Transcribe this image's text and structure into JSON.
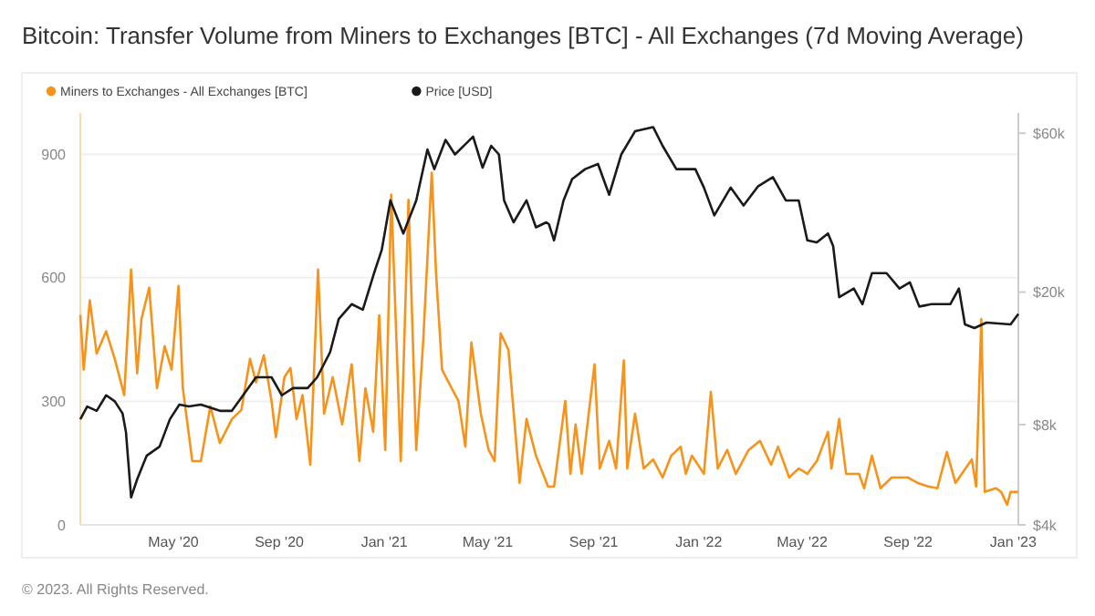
{
  "chart_data": {
    "type": "line",
    "title": "Bitcoin: Transfer Volume from Miners to Exchanges [BTC] - All Exchanges (7d Moving Average)",
    "annotations": [
      "© 2023. All Rights Reserved."
    ],
    "xlim": [
      "2020-01-14",
      "2023-01-07"
    ],
    "xticks": [
      {
        "value": "2020-05-01",
        "label": "May '20"
      },
      {
        "value": "2020-09-01",
        "label": "Sep '20"
      },
      {
        "value": "2021-01-01",
        "label": "Jan '21"
      },
      {
        "value": "2021-05-01",
        "label": "May '21"
      },
      {
        "value": "2021-09-01",
        "label": "Sep '21"
      },
      {
        "value": "2022-01-01",
        "label": "Jan '22"
      },
      {
        "value": "2022-05-01",
        "label": "May '22"
      },
      {
        "value": "2022-09-01",
        "label": "Sep '22"
      },
      {
        "value": "2023-01-01",
        "label": "Jan '23"
      }
    ],
    "ylim": [
      0,
      1000
    ],
    "yticks": [
      0,
      300,
      600,
      900
    ],
    "y2lim": [
      4000,
      69000
    ],
    "y2ticks": [
      {
        "value": 4000,
        "label": "$4k"
      },
      {
        "value": 8000,
        "label": "$8k"
      },
      {
        "value": 20000,
        "label": "$20k"
      },
      {
        "value": 60000,
        "label": "$60k"
      }
    ],
    "log": "y2",
    "grid": "y",
    "legend": "top left",
    "series": [
      {
        "name": "Miners to Exchanges - All Exchanges [BTC]",
        "color": "#f7931a",
        "x": [
          "2020-01-14",
          "2020-01-18",
          "2020-01-25",
          "2020-02-02",
          "2020-02-13",
          "2020-02-23",
          "2020-03-05",
          "2020-03-13",
          "2020-03-20",
          "2020-03-25",
          "2020-04-03",
          "2020-04-12",
          "2020-04-21",
          "2020-04-29",
          "2020-05-07",
          "2020-05-12",
          "2020-05-23",
          "2020-06-02",
          "2020-06-13",
          "2020-06-24",
          "2020-07-08",
          "2020-07-19",
          "2020-07-29",
          "2020-08-05",
          "2020-08-14",
          "2020-08-23",
          "2020-08-28",
          "2020-09-07",
          "2020-09-14",
          "2020-09-21",
          "2020-09-28",
          "2020-10-07",
          "2020-10-16",
          "2020-10-23",
          "2020-11-02",
          "2020-11-13",
          "2020-11-24",
          "2020-12-03",
          "2020-12-10",
          "2020-12-19",
          "2020-12-26",
          "2021-01-02",
          "2021-01-09",
          "2021-01-20",
          "2021-01-29",
          "2021-02-07",
          "2021-02-15",
          "2021-02-25",
          "2021-03-02",
          "2021-03-09",
          "2021-03-20",
          "2021-03-28",
          "2021-04-05",
          "2021-04-12",
          "2021-04-23",
          "2021-05-02",
          "2021-05-09",
          "2021-05-16",
          "2021-05-25",
          "2021-06-07",
          "2021-06-15",
          "2021-06-26",
          "2021-07-10",
          "2021-07-17",
          "2021-07-30",
          "2021-08-05",
          "2021-08-11",
          "2021-08-18",
          "2021-09-02",
          "2021-09-08",
          "2021-09-19",
          "2021-09-27",
          "2021-10-06",
          "2021-10-10",
          "2021-10-19",
          "2021-10-29",
          "2021-11-09",
          "2021-11-20",
          "2021-11-30",
          "2021-12-11",
          "2021-12-17",
          "2021-12-24",
          "2022-01-07",
          "2022-01-15",
          "2022-01-23",
          "2022-02-03",
          "2022-02-13",
          "2022-02-28",
          "2022-03-13",
          "2022-03-26",
          "2022-04-03",
          "2022-04-16",
          "2022-04-27",
          "2022-05-07",
          "2022-05-18",
          "2022-05-31",
          "2022-06-04",
          "2022-06-13",
          "2022-06-21",
          "2022-07-06",
          "2022-07-12",
          "2022-07-21",
          "2022-07-31",
          "2022-08-13",
          "2022-09-01",
          "2022-09-12",
          "2022-09-25",
          "2022-10-05",
          "2022-10-16",
          "2022-10-26",
          "2022-11-14",
          "2022-11-19",
          "2022-11-25",
          "2022-11-29",
          "2022-12-12",
          "2022-12-18",
          "2022-12-25",
          "2022-12-29",
          "2023-01-07"
        ],
        "values": [
          510,
          377,
          545,
          416,
          470,
          403,
          315,
          620,
          368,
          500,
          576,
          332,
          434,
          377,
          580,
          332,
          155,
          155,
          288,
          199,
          257,
          279,
          403,
          346,
          412,
          301,
          213,
          359,
          381,
          257,
          315,
          146,
          620,
          270,
          359,
          244,
          390,
          155,
          332,
          226,
          509,
          182,
          802,
          155,
          789,
          182,
          443,
          855,
          611,
          377,
          332,
          301,
          190,
          443,
          270,
          182,
          155,
          465,
          425,
          102,
          257,
          168,
          93,
          93,
          301,
          124,
          244,
          124,
          390,
          137,
          204,
          137,
          399,
          137,
          270,
          137,
          159,
          115,
          168,
          190,
          124,
          168,
          124,
          323,
          137,
          182,
          124,
          182,
          204,
          146,
          190,
          115,
          137,
          124,
          155,
          226,
          137,
          257,
          124,
          124,
          89,
          168,
          89,
          115,
          115,
          102,
          93,
          89,
          177,
          102,
          159,
          93,
          500,
          80,
          89,
          80,
          49,
          80,
          80
        ]
      },
      {
        "name": "Price [USD]",
        "color": "#1a1a1a",
        "axis": "y2",
        "x": [
          "2020-01-14",
          "2020-01-22",
          "2020-02-02",
          "2020-02-13",
          "2020-02-23",
          "2020-03-03",
          "2020-03-07",
          "2020-03-13",
          "2020-03-20",
          "2020-03-31",
          "2020-04-15",
          "2020-04-27",
          "2020-05-08",
          "2020-05-19",
          "2020-06-02",
          "2020-06-24",
          "2020-07-08",
          "2020-07-21",
          "2020-08-05",
          "2020-08-23",
          "2020-09-04",
          "2020-09-17",
          "2020-10-04",
          "2020-10-15",
          "2020-10-30",
          "2020-11-09",
          "2020-11-24",
          "2020-12-07",
          "2020-12-20",
          "2020-12-29",
          "2021-01-08",
          "2021-01-23",
          "2021-02-07",
          "2021-02-20",
          "2021-02-28",
          "2021-03-13",
          "2021-03-24",
          "2021-04-14",
          "2021-04-25",
          "2021-05-05",
          "2021-05-14",
          "2021-05-20",
          "2021-05-31",
          "2021-06-15",
          "2021-06-26",
          "2021-07-08",
          "2021-07-11",
          "2021-07-17",
          "2021-07-28",
          "2021-08-07",
          "2021-08-22",
          "2021-09-06",
          "2021-09-19",
          "2021-10-03",
          "2021-10-19",
          "2021-11-09",
          "2021-11-20",
          "2021-12-06",
          "2021-12-28",
          "2022-01-07",
          "2022-01-19",
          "2022-02-07",
          "2022-02-22",
          "2022-03-11",
          "2022-03-28",
          "2022-04-12",
          "2022-04-27",
          "2022-05-07",
          "2022-05-18",
          "2022-05-31",
          "2022-06-06",
          "2022-06-13",
          "2022-06-30",
          "2022-07-10",
          "2022-07-21",
          "2022-08-07",
          "2022-08-22",
          "2022-09-03",
          "2022-09-14",
          "2022-09-28",
          "2022-10-20",
          "2022-10-30",
          "2022-11-06",
          "2022-11-17",
          "2022-12-01",
          "2022-12-29",
          "2023-01-07"
        ],
        "values": [
          8300,
          9070,
          8800,
          9800,
          9400,
          8650,
          7600,
          4840,
          5480,
          6450,
          6870,
          8300,
          9190,
          9070,
          9190,
          8800,
          8800,
          9800,
          11100,
          11100,
          9800,
          10300,
          10300,
          11100,
          13200,
          16600,
          18400,
          17700,
          22800,
          26800,
          37700,
          30000,
          37700,
          53600,
          46800,
          57300,
          51800,
          58600,
          47300,
          55000,
          51800,
          37700,
          32400,
          37700,
          31300,
          32400,
          32000,
          28600,
          37700,
          43700,
          46800,
          48500,
          39200,
          51800,
          60800,
          62600,
          55000,
          46800,
          46800,
          41200,
          34000,
          41200,
          36400,
          41600,
          44300,
          37700,
          37700,
          28600,
          28200,
          30000,
          27500,
          19300,
          20500,
          18400,
          22800,
          22800,
          20500,
          21400,
          18100,
          18400,
          18400,
          20500,
          16000,
          15600,
          16200,
          16000,
          17200
        ]
      }
    ]
  }
}
